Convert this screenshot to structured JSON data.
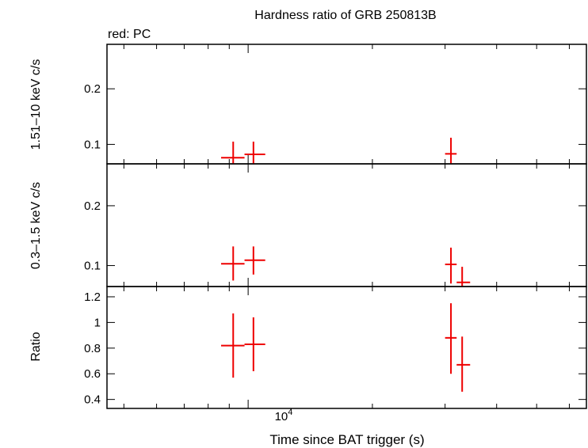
{
  "colors": {
    "data": "#ee0000",
    "axes": "#000000"
  },
  "chart_data": {
    "type": "scatter",
    "title": "Hardness ratio of GRB 250813B",
    "subtitle": "red: PC",
    "xlabel": "Time since BAT trigger (s)",
    "x_scale": "log",
    "x_tick_label": {
      "base": "10",
      "exp": "4",
      "value": 10000
    },
    "xlim": [
      4550,
      66000
    ],
    "grid": false,
    "panels": [
      {
        "ylabel": "1.51–10 keV c/s",
        "ylim": [
          0.065,
          0.28
        ],
        "yticks": [
          0.1,
          0.2
        ],
        "ytick_labels": [
          "0.1",
          "0.2"
        ],
        "points": [
          {
            "x": 9200,
            "xlo": 8600,
            "xhi": 9800,
            "y": 0.076,
            "ylo": 0.05,
            "yhi": 0.105
          },
          {
            "x": 10300,
            "xlo": 9800,
            "xhi": 11000,
            "y": 0.082,
            "ylo": 0.06,
            "yhi": 0.105
          },
          {
            "x": 31000,
            "xlo": 30000,
            "xhi": 32000,
            "y": 0.083,
            "ylo": 0.058,
            "yhi": 0.112
          }
        ]
      },
      {
        "ylabel": "0.3–1.5 keV c/s",
        "ylim": [
          0.065,
          0.27
        ],
        "yticks": [
          0.1,
          0.2
        ],
        "ytick_labels": [
          "0.1",
          "0.2"
        ],
        "points": [
          {
            "x": 9200,
            "xlo": 8600,
            "xhi": 9800,
            "y": 0.103,
            "ylo": 0.075,
            "yhi": 0.132
          },
          {
            "x": 10300,
            "xlo": 9800,
            "xhi": 11000,
            "y": 0.109,
            "ylo": 0.085,
            "yhi": 0.132
          },
          {
            "x": 31000,
            "xlo": 30000,
            "xhi": 32000,
            "y": 0.102,
            "ylo": 0.07,
            "yhi": 0.13
          },
          {
            "x": 33000,
            "xlo": 32000,
            "xhi": 34500,
            "y": 0.072,
            "ylo": 0.05,
            "yhi": 0.098
          }
        ]
      },
      {
        "ylabel": "Ratio",
        "ylim": [
          0.33,
          1.28
        ],
        "yticks": [
          0.4,
          0.6,
          0.8,
          1.0,
          1.2
        ],
        "ytick_labels": [
          "0.4",
          "0.6",
          "0.8",
          "1",
          "1.2"
        ],
        "points": [
          {
            "x": 9200,
            "xlo": 8600,
            "xhi": 9800,
            "y": 0.82,
            "ylo": 0.57,
            "yhi": 1.07
          },
          {
            "x": 10300,
            "xlo": 9800,
            "xhi": 11000,
            "y": 0.83,
            "ylo": 0.62,
            "yhi": 1.04
          },
          {
            "x": 31000,
            "xlo": 30000,
            "xhi": 32000,
            "y": 0.88,
            "ylo": 0.6,
            "yhi": 1.15
          },
          {
            "x": 33000,
            "xlo": 32000,
            "xhi": 34500,
            "y": 0.67,
            "ylo": 0.46,
            "yhi": 0.89
          }
        ]
      }
    ]
  }
}
